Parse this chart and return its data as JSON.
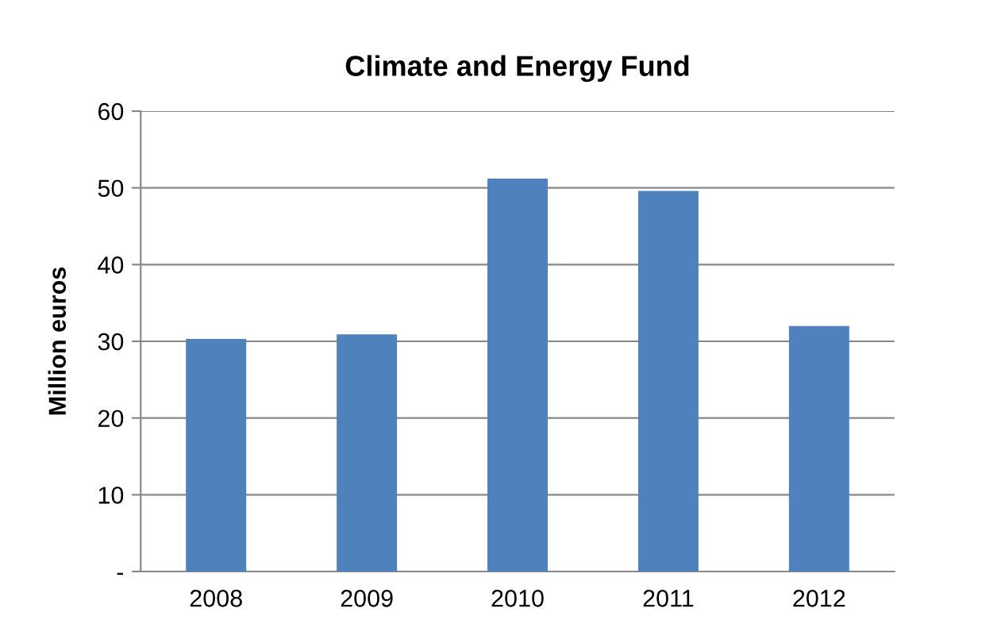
{
  "chart_data": {
    "type": "bar",
    "title": "Climate and Energy Fund",
    "ylabel": "Million euros",
    "categories": [
      "2008",
      "2009",
      "2010",
      "2011",
      "2012"
    ],
    "series": [
      {
        "color": "#4f81bd",
        "values": [
          30.3,
          30.9,
          51.2,
          49.6,
          32.0
        ]
      }
    ],
    "ylim": [
      0,
      60
    ],
    "yticks": [
      {
        "value": 0,
        "label": "-"
      },
      10,
      20,
      30,
      40,
      50,
      60
    ],
    "grid": "y",
    "legend": false
  }
}
